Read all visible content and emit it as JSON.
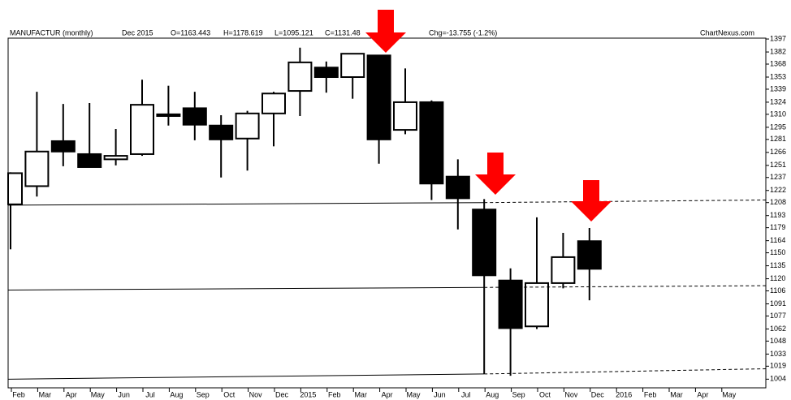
{
  "chart_data": {
    "type": "candlestick",
    "header": {
      "symbol": "MANUFACTUR (monthly)",
      "date": "Dec 2015",
      "open": "O=1163.443",
      "high": "H=1178.619",
      "low": "L=1095.121",
      "close": "C=1131.48",
      "change": "Chg=-13.755 (-1.2%)",
      "source": "ChartNexus.com"
    },
    "categories": [
      "Feb",
      "Mar",
      "Apr",
      "May",
      "Jun",
      "Jul",
      "Aug",
      "Sep",
      "Oct",
      "Nov",
      "Dec",
      "2015",
      "Feb",
      "Mar",
      "Apr",
      "May",
      "Jun",
      "Jul",
      "Aug",
      "Sep",
      "Oct",
      "Nov",
      "Dec",
      "2016",
      "Feb",
      "Mar",
      "Apr",
      "May"
    ],
    "open": [
      1206,
      1227,
      1279,
      1264,
      1258,
      1264,
      1310,
      1317,
      1297,
      1282,
      1311,
      1337,
      1364,
      1353,
      1378,
      1292,
      1324,
      1238,
      1200,
      1118,
      1065,
      1115,
      1163.443,
      null,
      null,
      null,
      null,
      null
    ],
    "high": [
      1243,
      1336,
      1322,
      1323,
      1293,
      1350,
      1343,
      1336,
      1309,
      1314,
      1336,
      1387,
      1371,
      1380,
      1378,
      1363,
      1326,
      1258,
      1212,
      1132,
      1191,
      1173,
      1178.619,
      null,
      null,
      null,
      null,
      null
    ],
    "low": [
      1154,
      1215,
      1250,
      1249,
      1251,
      1262,
      1297,
      1280,
      1237,
      1245,
      1273,
      1308,
      1335,
      1328,
      1253,
      1287,
      1211,
      1177,
      1010,
      1008,
      1062,
      1109,
      1095.121,
      null,
      null,
      null,
      null,
      null
    ],
    "close": [
      1242,
      1267,
      1267,
      1249,
      1262,
      1321,
      1308,
      1298,
      1281,
      1311,
      1334,
      1370,
      1353,
      1380,
      1281,
      1324,
      1230,
      1213,
      1124,
      1063,
      1115,
      1145,
      1131.48,
      null,
      null,
      null,
      null,
      null
    ],
    "up_color": "#ffffff",
    "down_color": "#000000",
    "support_lines": [
      {
        "values": [
          1205,
          1208,
          1211
        ],
        "dashed_from": 18
      },
      {
        "values": [
          1107,
          1110,
          1112
        ],
        "dashed_from": 18
      },
      {
        "values": [
          1004,
          1010,
          1016
        ],
        "dashed_from": 18
      }
    ],
    "ylim": [
      994,
      1398
    ],
    "yticks": [
      1397,
      1382,
      1368,
      1353,
      1339,
      1324,
      1310,
      1295,
      1281,
      1266,
      1251,
      1237,
      1222,
      1208,
      1193,
      1179,
      1164,
      1150,
      1135,
      1120,
      1106,
      1091,
      1077,
      1062,
      1048,
      1033,
      1019,
      1004
    ],
    "grid": false
  }
}
